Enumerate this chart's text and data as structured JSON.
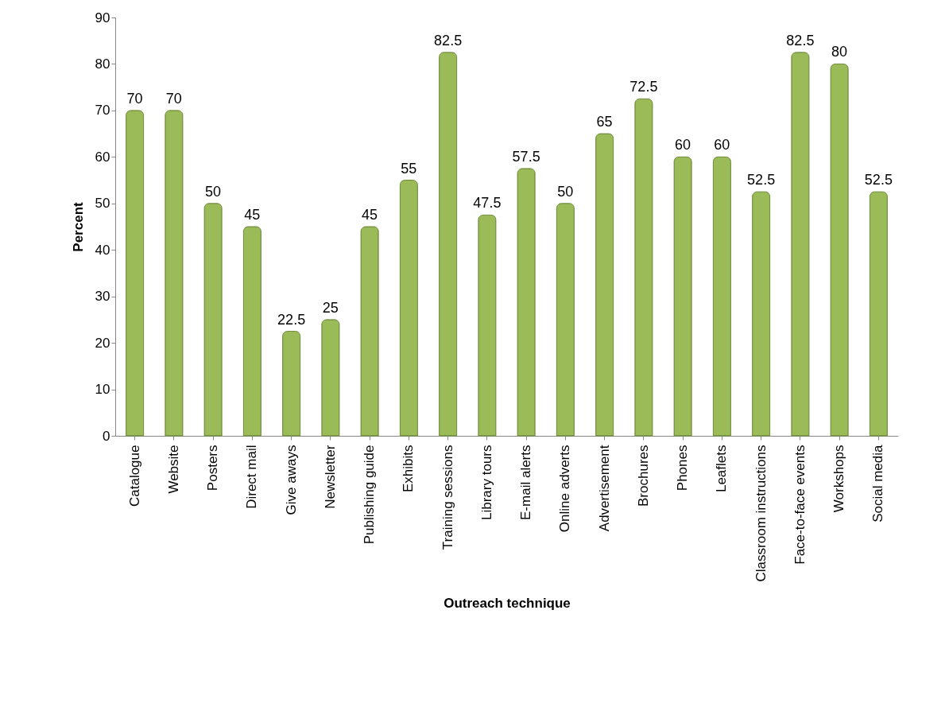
{
  "chart_data": {
    "type": "bar",
    "xlabel": "Outreach technique",
    "ylabel": "Percent",
    "categories": [
      "Catalogue",
      "Website",
      "Posters",
      "Direct mail",
      "Give aways",
      "Newsletter",
      "Publishing guide",
      "Exhibits",
      "Training sessions",
      "Library tours",
      "E-mail alerts",
      "Online adverts",
      "Advertisement",
      "Brochures",
      "Phones",
      "Leaflets",
      "Classroom instructions",
      "Face-to-face events",
      "Workshops",
      "Social media"
    ],
    "values": [
      70,
      70,
      50,
      45,
      22.5,
      25,
      45,
      55,
      82.5,
      47.5,
      57.5,
      50,
      65,
      72.5,
      60,
      60,
      52.5,
      82.5,
      80,
      52.5
    ],
    "color": "#9bbb59",
    "ylim": [
      0,
      90
    ],
    "yticks": [
      0,
      10,
      20,
      30,
      40,
      50,
      60,
      70,
      80,
      90
    ],
    "data_labels": true,
    "grid": false
  }
}
